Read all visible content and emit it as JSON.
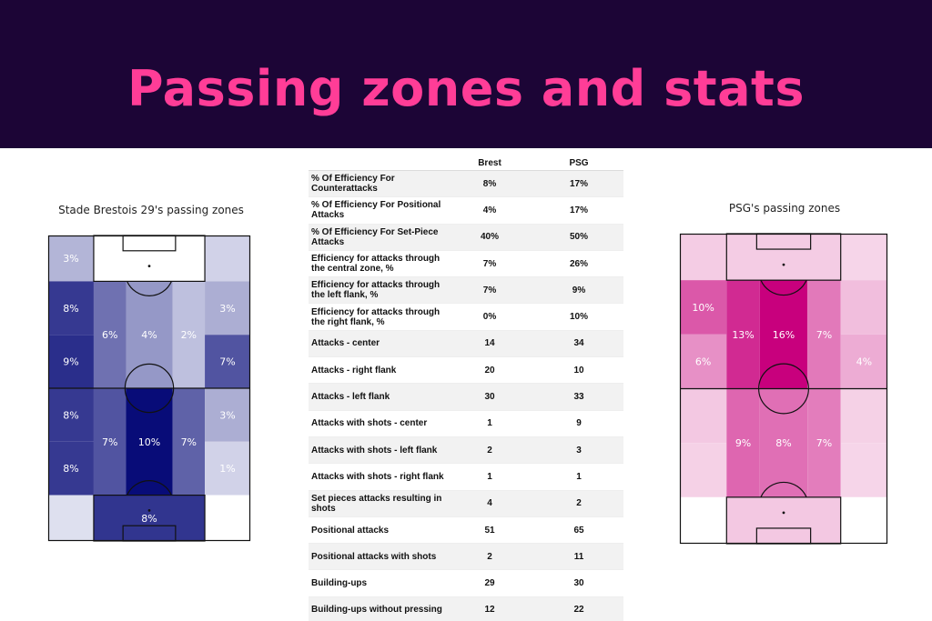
{
  "banner": {
    "title": "Passing zones and stats"
  },
  "colors": {
    "banner_bg": "#1c0536",
    "banner_text": "#ff3d97",
    "brest_scale": "blues (light lavender to navy)",
    "psg_scale": "magentas (light pink to magenta)"
  },
  "chart_data": [
    {
      "type": "heatmap",
      "title": "Stade Brestois 29's passing zones",
      "zones": [
        {
          "zone": "top-left corner",
          "value": "3%",
          "intensity": 0.25
        },
        {
          "zone": "top-right corner",
          "value": "",
          "intensity": 0.12
        },
        {
          "zone": "left wing upper",
          "value": "8%",
          "intensity": 0.8
        },
        {
          "zone": "left wing lower",
          "value": "9%",
          "intensity": 0.85
        },
        {
          "zone": "left half-space upper",
          "value": "6%",
          "intensity": 0.55
        },
        {
          "zone": "center upper",
          "value": "4%",
          "intensity": 0.38
        },
        {
          "zone": "right half-space upper",
          "value": "2%",
          "intensity": 0.2
        },
        {
          "zone": "right wing upper",
          "value": "3%",
          "intensity": 0.28
        },
        {
          "zone": "right wing lower",
          "value": "7%",
          "intensity": 0.68
        },
        {
          "zone": "left wing upper 2",
          "value": "8%",
          "intensity": 0.8
        },
        {
          "zone": "left wing lower 2",
          "value": "8%",
          "intensity": 0.8
        },
        {
          "zone": "left half-space lower",
          "value": "7%",
          "intensity": 0.68
        },
        {
          "zone": "center lower",
          "value": "10%",
          "intensity": 1.0
        },
        {
          "zone": "right half-space lower",
          "value": "7%",
          "intensity": 0.62
        },
        {
          "zone": "right wing upper 2",
          "value": "3%",
          "intensity": 0.28
        },
        {
          "zone": "right wing lower 2",
          "value": "1%",
          "intensity": 0.12
        },
        {
          "zone": "bottom-left corner",
          "value": "",
          "intensity": 0.06
        },
        {
          "zone": "bottom center",
          "value": "8%",
          "intensity": 0.82
        },
        {
          "zone": "bottom-right corner",
          "value": "0%",
          "intensity": 0.0
        }
      ]
    },
    {
      "type": "table",
      "columns": [
        "",
        "Brest",
        "PSG"
      ],
      "rows": [
        {
          "metric": "% Of Efficiency For Counterattacks",
          "brest": "8%",
          "psg": "17%"
        },
        {
          "metric": "% Of Efficiency For Positional Attacks",
          "brest": "4%",
          "psg": "17%"
        },
        {
          "metric": "% Of Efficiency For Set-Piece Attacks",
          "brest": "40%",
          "psg": "50%"
        },
        {
          "metric": "Efficiency for attacks through the central zone, %",
          "brest": "7%",
          "psg": "26%"
        },
        {
          "metric": "Efficiency for attacks through the left flank, %",
          "brest": "7%",
          "psg": "9%"
        },
        {
          "metric": "Efficiency for attacks through the right flank, %",
          "brest": "0%",
          "psg": "10%"
        },
        {
          "metric": "Attacks - center",
          "brest": "14",
          "psg": "34"
        },
        {
          "metric": "Attacks - right flank",
          "brest": "20",
          "psg": "10"
        },
        {
          "metric": "Attacks - left flank",
          "brest": "30",
          "psg": "33"
        },
        {
          "metric": "Attacks with shots - center",
          "brest": "1",
          "psg": "9"
        },
        {
          "metric": "Attacks with shots - left flank",
          "brest": "2",
          "psg": "3"
        },
        {
          "metric": "Attacks with shots - right flank",
          "brest": "1",
          "psg": "1"
        },
        {
          "metric": "Set pieces attacks resulting in shots",
          "brest": "4",
          "psg": "2"
        },
        {
          "metric": "Positional attacks",
          "brest": "51",
          "psg": "65"
        },
        {
          "metric": "Positional attacks with shots",
          "brest": "2",
          "psg": "11"
        },
        {
          "metric": "Building-ups",
          "brest": "29",
          "psg": "30"
        },
        {
          "metric": "Building-ups without pressing",
          "brest": "12",
          "psg": "22"
        }
      ]
    },
    {
      "type": "heatmap",
      "title": "PSG's passing zones",
      "zones": [
        {
          "zone": "top-left corner",
          "value": "",
          "intensity": 0.12
        },
        {
          "zone": "top-right corner",
          "value": "",
          "intensity": 0.08
        },
        {
          "zone": "top center",
          "value": "",
          "intensity": 0.12
        },
        {
          "zone": "left wing upper",
          "value": "10%",
          "intensity": 0.62
        },
        {
          "zone": "left wing lower",
          "value": "6%",
          "intensity": 0.38
        },
        {
          "zone": "left half-space upper",
          "value": "13%",
          "intensity": 0.82
        },
        {
          "zone": "center upper",
          "value": "16%",
          "intensity": 1.0
        },
        {
          "zone": "right half-space upper",
          "value": "7%",
          "intensity": 0.48
        },
        {
          "zone": "right wing upper",
          "value": "",
          "intensity": 0.18
        },
        {
          "zone": "right wing lower",
          "value": "4%",
          "intensity": 0.26
        },
        {
          "zone": "left wing upper 2",
          "value": "",
          "intensity": 0.14
        },
        {
          "zone": "left wing lower 2",
          "value": "",
          "intensity": 0.1
        },
        {
          "zone": "left half-space lower",
          "value": "9%",
          "intensity": 0.56
        },
        {
          "zone": "center lower",
          "value": "8%",
          "intensity": 0.52
        },
        {
          "zone": "right half-space lower",
          "value": "7%",
          "intensity": 0.46
        },
        {
          "zone": "right wing upper 2",
          "value": "",
          "intensity": 0.1
        },
        {
          "zone": "right wing lower 2",
          "value": "",
          "intensity": 0.08
        },
        {
          "zone": "bottom-left corner",
          "value": "0%",
          "intensity": 0.0
        },
        {
          "zone": "bottom center",
          "value": "",
          "intensity": 0.14
        },
        {
          "zone": "bottom-right corner",
          "value": "0%",
          "intensity": 0.0
        }
      ]
    }
  ]
}
